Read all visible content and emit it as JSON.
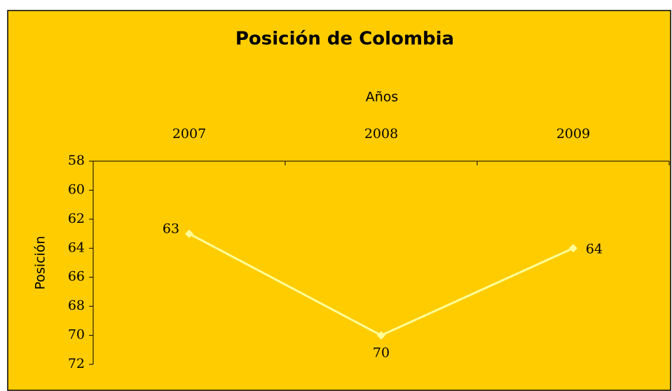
{
  "chart_data": {
    "type": "line",
    "title": "Posición de Colombia",
    "x_label": "Años",
    "y_label": "Posición",
    "categories": [
      "2007",
      "2008",
      "2009"
    ],
    "series": [
      {
        "name": "Posición",
        "color": "#ffff99",
        "values": [
          63,
          70,
          64
        ]
      }
    ],
    "ylim": [
      58,
      72
    ],
    "yticks": [
      58,
      60,
      62,
      64,
      66,
      68,
      70,
      72
    ],
    "y_reversed": true,
    "x_axis_position": "top",
    "grid": false,
    "data_labels": true
  }
}
